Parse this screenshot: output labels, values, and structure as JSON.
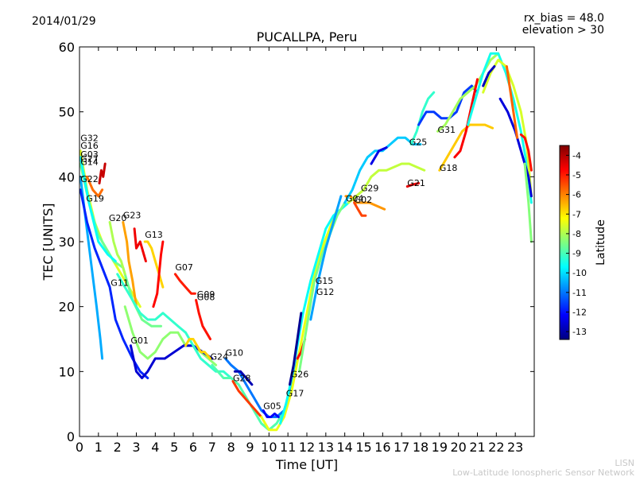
{
  "header": {
    "date": "2014/01/29",
    "rx_bias": "rx_bias = 48.0",
    "elevation": "elevation > 30"
  },
  "footer": {
    "line1": "LISN",
    "line2": "Low-Latitude Ionospheric Sensor Network"
  },
  "chart_data": {
    "type": "line",
    "title": "PUCALLPA, Peru",
    "xlabel": "Time [UT]",
    "ylabel": "TEC [UNITS]",
    "xlim": [
      0,
      24
    ],
    "ylim": [
      0,
      60
    ],
    "xticks": [
      0,
      1,
      2,
      3,
      4,
      5,
      6,
      7,
      8,
      9,
      10,
      11,
      12,
      13,
      14,
      15,
      16,
      17,
      18,
      19,
      20,
      21,
      22,
      23
    ],
    "yticks": [
      0,
      10,
      20,
      30,
      40,
      50,
      60
    ],
    "grid": false,
    "colorbar": {
      "label": "Latitude",
      "min": -13.4,
      "max": -3.5,
      "ticks": [
        -4,
        -5,
        -6,
        -7,
        -8,
        -9,
        -10,
        -11,
        -12,
        -13
      ],
      "colormap": [
        "#00007f",
        "#0000ff",
        "#007fff",
        "#00ffff",
        "#7fff7f",
        "#ffff00",
        "#ff7f00",
        "#ff0000",
        "#7f0000"
      ]
    },
    "satellite_labels": [
      {
        "text": "G32",
        "x": 0.05,
        "y": 45.5
      },
      {
        "text": "G16",
        "x": 0.05,
        "y": 44.3
      },
      {
        "text": "G03",
        "x": 0.05,
        "y": 43.0
      },
      {
        "text": "G27",
        "x": 0.05,
        "y": 42.3
      },
      {
        "text": "G14",
        "x": 0.05,
        "y": 41.8
      },
      {
        "text": "G22",
        "x": 0.05,
        "y": 39.2
      },
      {
        "text": "G19",
        "x": 0.35,
        "y": 36.2
      },
      {
        "text": "G20",
        "x": 1.55,
        "y": 33.2
      },
      {
        "text": "G23",
        "x": 2.3,
        "y": 33.6
      },
      {
        "text": "G13",
        "x": 3.45,
        "y": 30.6
      },
      {
        "text": "G11",
        "x": 1.65,
        "y": 23.2
      },
      {
        "text": "G07",
        "x": 5.05,
        "y": 25.6
      },
      {
        "text": "G09",
        "x": 6.2,
        "y": 21.4
      },
      {
        "text": "G08",
        "x": 6.2,
        "y": 21.0
      },
      {
        "text": "G01",
        "x": 2.7,
        "y": 14.3
      },
      {
        "text": "G24",
        "x": 6.9,
        "y": 11.8
      },
      {
        "text": "G10",
        "x": 7.7,
        "y": 12.4
      },
      {
        "text": "G28",
        "x": 8.1,
        "y": 8.5
      },
      {
        "text": "G05",
        "x": 9.7,
        "y": 4.2
      },
      {
        "text": "G17",
        "x": 10.9,
        "y": 6.2
      },
      {
        "text": "G26",
        "x": 11.15,
        "y": 9.1
      },
      {
        "text": "G15",
        "x": 12.45,
        "y": 23.5
      },
      {
        "text": "G12",
        "x": 12.5,
        "y": 21.8
      },
      {
        "text": "G04",
        "x": 14.05,
        "y": 36.2
      },
      {
        "text": "G02",
        "x": 14.5,
        "y": 36.0
      },
      {
        "text": "G29",
        "x": 14.85,
        "y": 37.8
      },
      {
        "text": "G21",
        "x": 17.3,
        "y": 38.6
      },
      {
        "text": "G25",
        "x": 17.4,
        "y": 44.9
      },
      {
        "text": "G31",
        "x": 18.9,
        "y": 46.8
      },
      {
        "text": "G18",
        "x": 19.0,
        "y": 40.9
      }
    ],
    "series": [
      {
        "lat": -7.5,
        "x": [
          0.05,
          0.4,
          0.8,
          1.2,
          1.6,
          2.0,
          2.4,
          2.8,
          3.2
        ],
        "y": [
          44,
          38,
          33,
          30,
          28,
          26,
          24,
          22,
          20
        ]
      },
      {
        "lat": -8.6,
        "x": [
          0.05,
          0.5,
          1.0,
          1.4,
          1.8,
          2.3,
          2.8,
          3.3,
          3.8,
          4.3
        ],
        "y": [
          42,
          36,
          31,
          29,
          27,
          26,
          21,
          18,
          17,
          17
        ]
      },
      {
        "lat": -10.5,
        "x": [
          0.05,
          0.3,
          0.6,
          0.9,
          1.1,
          1.2
        ],
        "y": [
          40,
          34,
          27,
          20,
          15,
          12
        ]
      },
      {
        "lat": -11.8,
        "x": [
          0.05,
          0.4,
          0.8,
          1.2,
          1.6,
          1.9,
          2.3,
          2.8,
          3.2,
          3.6
        ],
        "y": [
          38,
          33,
          29,
          26,
          23,
          18,
          15,
          12,
          10,
          9
        ]
      },
      {
        "lat": -9.6,
        "x": [
          0.05,
          0.5,
          1.0,
          1.5,
          1.9
        ],
        "y": [
          43,
          36,
          30,
          28,
          27
        ]
      },
      {
        "lat": -5.8,
        "x": [
          0.4,
          0.7,
          1.0,
          1.2
        ],
        "y": [
          40,
          38,
          37,
          38
        ]
      },
      {
        "lat": -4.2,
        "x": [
          1.05,
          1.15,
          1.25,
          1.35
        ],
        "y": [
          39,
          41,
          40,
          42
        ]
      },
      {
        "lat": -8.0,
        "x": [
          1.6,
          1.8,
          2.0,
          2.2,
          2.4
        ],
        "y": [
          33,
          30,
          28,
          27,
          25
        ]
      },
      {
        "lat": -6.3,
        "x": [
          2.3,
          2.5,
          2.6,
          2.8,
          2.9,
          3.0
        ],
        "y": [
          33,
          30,
          27,
          24,
          22,
          20
        ]
      },
      {
        "lat": -4.6,
        "x": [
          2.9,
          3.0,
          3.2,
          3.4,
          3.5
        ],
        "y": [
          32,
          29,
          30,
          28,
          27
        ]
      },
      {
        "lat": -6.8,
        "x": [
          3.45,
          3.6,
          3.8,
          4.0,
          4.2,
          4.4
        ],
        "y": [
          30,
          30,
          29,
          27,
          25,
          23
        ]
      },
      {
        "lat": -4.8,
        "x": [
          3.9,
          4.1,
          4.2,
          4.3,
          4.4
        ],
        "y": [
          20,
          22,
          25,
          28,
          30
        ]
      },
      {
        "lat": -8.3,
        "x": [
          2.4,
          2.8,
          3.2,
          3.6,
          4.0,
          4.4,
          4.8,
          5.2,
          5.6,
          6.0,
          6.4,
          6.8,
          7.2
        ],
        "y": [
          20,
          16,
          13,
          12,
          13,
          15,
          16,
          16,
          14,
          14,
          13,
          12,
          11
        ]
      },
      {
        "lat": -12.6,
        "x": [
          2.7,
          3.0,
          3.3,
          3.6,
          4.0,
          4.5,
          5.0,
          5.5,
          6.0,
          6.5,
          7.0
        ],
        "y": [
          14,
          10,
          9,
          10,
          12,
          12,
          13,
          14,
          14,
          13,
          12
        ]
      },
      {
        "lat": -9.2,
        "x": [
          2.0,
          2.4,
          2.8,
          3.2,
          3.6,
          4.0,
          4.4,
          4.8,
          5.2,
          5.6,
          6.0,
          6.4,
          6.8,
          7.2,
          7.6,
          8.0
        ],
        "y": [
          25,
          23,
          21,
          19,
          18,
          18,
          19,
          18,
          17,
          16,
          14,
          12,
          11,
          10,
          10,
          9
        ]
      },
      {
        "lat": -5.0,
        "x": [
          5.05,
          5.3,
          5.6,
          5.9,
          6.1
        ],
        "y": [
          25,
          24,
          23,
          22,
          22
        ]
      },
      {
        "lat": -4.9,
        "x": [
          6.15,
          6.3,
          6.5,
          6.7,
          6.9
        ],
        "y": [
          21,
          19,
          17,
          16,
          15
        ]
      },
      {
        "lat": -6.8,
        "x": [
          5.6,
          5.8,
          6.0,
          6.2,
          6.4,
          6.6,
          6.9
        ],
        "y": [
          14,
          15,
          15,
          14,
          13,
          13,
          12
        ]
      },
      {
        "lat": -8.9,
        "x": [
          7.0,
          7.3,
          7.6,
          8.0,
          8.4,
          8.8,
          9.2,
          9.6,
          10.0,
          10.4,
          10.8
        ],
        "y": [
          11,
          10,
          9,
          9,
          8,
          6,
          4,
          2,
          1,
          2,
          4
        ]
      },
      {
        "lat": -11.0,
        "x": [
          7.7,
          8.0,
          8.4,
          8.8,
          9.2,
          9.6,
          10.0,
          10.4,
          10.8,
          11.2,
          11.6
        ],
        "y": [
          12,
          11,
          10,
          8,
          6,
          4,
          3,
          3,
          4,
          8,
          13
        ]
      },
      {
        "lat": -12.9,
        "x": [
          8.2,
          8.5,
          8.8,
          9.1
        ],
        "y": [
          10,
          10,
          9,
          8
        ]
      },
      {
        "lat": -5.3,
        "x": [
          8.1,
          8.4,
          8.7,
          9.0,
          9.3,
          9.6
        ],
        "y": [
          8.5,
          7,
          6,
          5,
          4,
          3
        ]
      },
      {
        "lat": -12.2,
        "x": [
          9.7,
          9.9,
          10.1,
          10.3,
          10.5
        ],
        "y": [
          4,
          3,
          3,
          3.5,
          3
        ]
      },
      {
        "lat": -7.4,
        "x": [
          9.6,
          10.0,
          10.4,
          10.8,
          11.2,
          11.6,
          12.0,
          12.4,
          12.8,
          13.2,
          13.6
        ],
        "y": [
          3,
          1,
          1,
          3,
          7,
          13,
          19,
          25,
          29,
          32,
          35
        ]
      },
      {
        "lat": -9.6,
        "x": [
          10.6,
          10.9,
          11.2,
          11.5,
          11.8,
          12.2,
          12.6,
          13.0,
          13.4,
          13.8,
          14.2
        ],
        "y": [
          2,
          5,
          9,
          14,
          19,
          24,
          28,
          32,
          34,
          35,
          36
        ]
      },
      {
        "lat": -13.2,
        "x": [
          11.1,
          11.3,
          11.5,
          11.7
        ],
        "y": [
          8,
          11,
          15,
          19
        ]
      },
      {
        "lat": -4.8,
        "x": [
          11.5,
          11.7,
          11.9
        ],
        "y": [
          12,
          13,
          15
        ]
      },
      {
        "lat": -8.5,
        "x": [
          11.6,
          12.0,
          12.4,
          12.8,
          13.2,
          13.6,
          14.0
        ],
        "y": [
          10,
          17,
          24,
          28,
          31,
          34,
          36
        ]
      },
      {
        "lat": -10.6,
        "x": [
          12.2,
          12.6,
          13.0,
          13.4,
          13.8
        ],
        "y": [
          18,
          24,
          29,
          33,
          37
        ]
      },
      {
        "lat": -6.2,
        "x": [
          14.05,
          14.3,
          14.6,
          14.9,
          15.3,
          15.7,
          16.1
        ],
        "y": [
          37,
          37,
          36,
          36,
          36,
          35.5,
          35
        ]
      },
      {
        "lat": -5.4,
        "x": [
          14.5,
          14.7,
          14.9,
          15.1
        ],
        "y": [
          36,
          35,
          34,
          34
        ]
      },
      {
        "lat": -10.2,
        "x": [
          14.0,
          14.4,
          14.8,
          15.2,
          15.6,
          16.0,
          16.4,
          16.8,
          17.2,
          17.6,
          18.0
        ],
        "y": [
          36,
          38,
          41,
          43,
          44,
          44,
          45,
          46,
          46,
          45,
          45
        ]
      },
      {
        "lat": -7.8,
        "x": [
          14.2,
          14.6,
          15.0,
          15.4,
          15.8,
          16.2,
          16.6,
          17.0,
          17.4,
          17.8,
          18.2
        ],
        "y": [
          36,
          37,
          38,
          40,
          41,
          41,
          41.5,
          42,
          42,
          41.5,
          41
        ]
      },
      {
        "lat": -12.4,
        "x": [
          15.4,
          15.8,
          16.2
        ],
        "y": [
          42,
          44,
          44.5
        ]
      },
      {
        "lat": -4.5,
        "x": [
          17.3,
          17.6,
          17.9
        ],
        "y": [
          38.5,
          38.8,
          39
        ]
      },
      {
        "lat": -9.2,
        "x": [
          17.5,
          17.8,
          18.1,
          18.4,
          18.7
        ],
        "y": [
          45,
          47,
          50,
          52,
          53
        ]
      },
      {
        "lat": -11.6,
        "x": [
          17.9,
          18.3,
          18.7,
          19.1,
          19.5,
          19.9,
          20.3,
          20.7,
          21.0
        ],
        "y": [
          48,
          50,
          50,
          49,
          49,
          50,
          53,
          54,
          53
        ]
      },
      {
        "lat": -8.1,
        "x": [
          18.9,
          19.3,
          19.7,
          20.1,
          20.5,
          20.9,
          21.3,
          21.7,
          22.1
        ],
        "y": [
          47,
          48,
          50,
          52,
          53,
          54,
          56,
          58,
          59
        ]
      },
      {
        "lat": -6.7,
        "x": [
          19.0,
          19.4,
          19.8,
          20.2,
          20.6,
          21.0,
          21.4,
          21.8
        ],
        "y": [
          41,
          43,
          45,
          47,
          48,
          48,
          48,
          47.5
        ]
      },
      {
        "lat": -4.7,
        "x": [
          19.8,
          20.1,
          20.4,
          20.7,
          21.0
        ],
        "y": [
          43,
          44,
          47,
          51,
          55
        ]
      },
      {
        "lat": -9.5,
        "x": [
          20.5,
          20.9,
          21.3,
          21.7,
          22.1,
          22.5,
          22.9,
          23.3,
          23.6,
          23.85
        ],
        "y": [
          48,
          52,
          56,
          59,
          59,
          56,
          52,
          47,
          42,
          36
        ]
      },
      {
        "lat": -7.6,
        "x": [
          21.3,
          21.7,
          22.1,
          22.5,
          22.9,
          23.3,
          23.6,
          23.85
        ],
        "y": [
          53,
          56,
          58,
          57,
          54,
          50,
          45,
          37
        ]
      },
      {
        "lat": -12.8,
        "x": [
          21.3,
          21.6,
          21.9
        ],
        "y": [
          54,
          56,
          57
        ]
      },
      {
        "lat": -12.5,
        "x": [
          22.2,
          22.6,
          23.0,
          23.4,
          23.7,
          23.85
        ],
        "y": [
          52,
          50,
          47,
          43,
          40,
          37
        ]
      },
      {
        "lat": -5.7,
        "x": [
          22.55,
          22.7,
          22.9,
          23.1
        ],
        "y": [
          57,
          54,
          50,
          46
        ]
      },
      {
        "lat": -4.9,
        "x": [
          23.3,
          23.5,
          23.7,
          23.85
        ],
        "y": [
          46.5,
          46,
          44,
          41
        ]
      },
      {
        "lat": -8.4,
        "x": [
          23.5,
          23.7,
          23.85
        ],
        "y": [
          42,
          36,
          30
        ]
      }
    ]
  }
}
